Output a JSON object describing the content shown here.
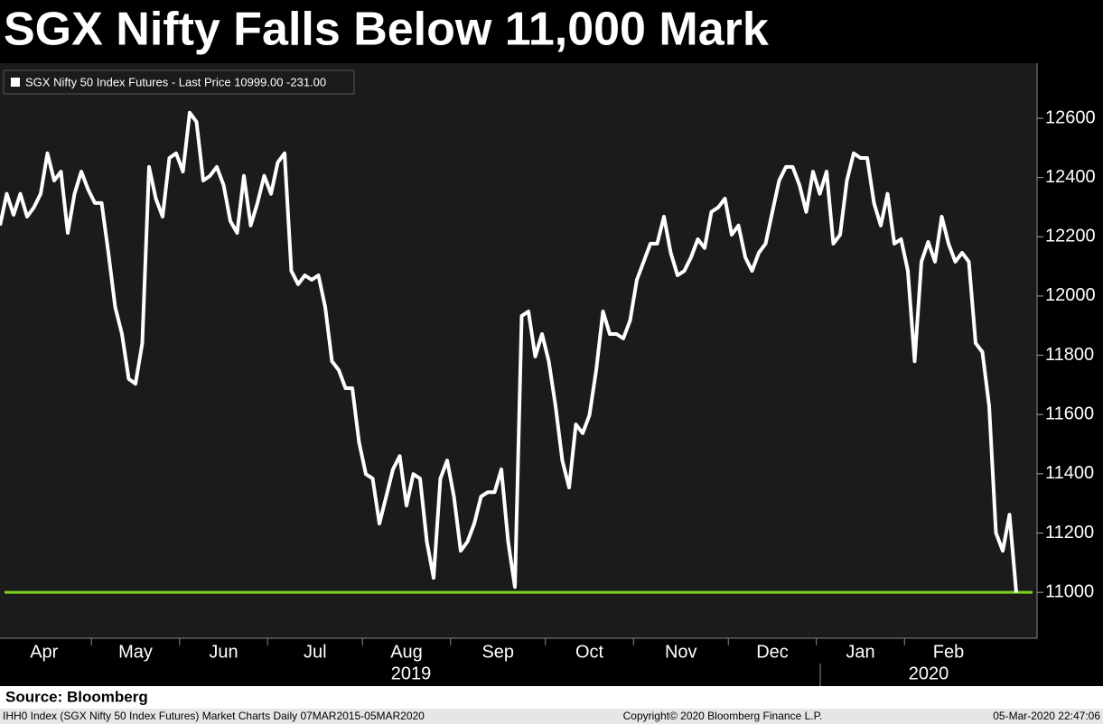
{
  "chart_data": {
    "type": "line",
    "title": "SGX Nifty Falls Below 11,000 Mark",
    "source": "Source: Bloomberg",
    "footer_left": "IHH0 Index (SGX Nifty 50 Index Futures) Market Charts  Daily 07MAR2015-05MAR2020",
    "footer_center": "Copyright© 2020 Bloomberg Finance L.P.",
    "footer_right": "05-Mar-2020 22:47:06",
    "x_group_labels": [
      "2019",
      "2020"
    ],
    "categories": [
      "Apr",
      null,
      null,
      null,
      null,
      null,
      null,
      null,
      null,
      null,
      null,
      null,
      null,
      null,
      "May",
      null,
      null,
      null,
      null,
      null,
      null,
      null,
      null,
      null,
      null,
      null,
      null,
      "Jun",
      null,
      null,
      null,
      null,
      null,
      null,
      null,
      null,
      null,
      null,
      null,
      null,
      "Jul",
      null,
      null,
      null,
      null,
      null,
      null,
      null,
      null,
      null,
      null,
      null,
      null,
      null,
      "Aug",
      null,
      null,
      null,
      null,
      null,
      null,
      null,
      null,
      null,
      null,
      null,
      null,
      "Sep",
      null,
      null,
      null,
      null,
      null,
      null,
      null,
      null,
      null,
      null,
      null,
      null,
      null,
      "Oct",
      null,
      null,
      null,
      null,
      null,
      null,
      null,
      null,
      null,
      null,
      null,
      null,
      "Nov",
      null,
      null,
      null,
      null,
      null,
      null,
      null,
      null,
      null,
      null,
      null,
      null,
      null,
      "Dec",
      null,
      null,
      null,
      null,
      null,
      null,
      null,
      null,
      null,
      null,
      null,
      null,
      "Jan",
      null,
      null,
      null,
      null,
      null,
      null,
      null,
      null,
      null,
      null,
      null,
      null,
      "Feb",
      null,
      null,
      null,
      null,
      null,
      null,
      null,
      null,
      null,
      null,
      null,
      null,
      null,
      null,
      null,
      null
    ],
    "series": [
      {
        "name": "SGX Nifty 50 Index Futures - Last Price 10999.00  -231.00",
        "color": "#ffffff",
        "values": [
          12238,
          12345,
          12274,
          12345,
          12268,
          12299,
          12345,
          12482,
          12390,
          12420,
          12213,
          12345,
          12420,
          12360,
          12314,
          12314,
          12146,
          11963,
          11872,
          11720,
          11704,
          11841,
          12436,
          12329,
          12268,
          12466,
          12482,
          12420,
          12619,
          12588,
          12390,
          12406,
          12436,
          12375,
          12253,
          12213,
          12406,
          12238,
          12314,
          12406,
          12345,
          12451,
          12482,
          12085,
          12040,
          12070,
          12055,
          12070,
          11963,
          11780,
          11750,
          11689,
          11689,
          11506,
          11399,
          11384,
          11232,
          11323,
          11415,
          11460,
          11293,
          11399,
          11384,
          11171,
          11049,
          11384,
          11445,
          11323,
          11140,
          11171,
          11232,
          11323,
          11338,
          11338,
          11415,
          11171,
          11018,
          11933,
          11948,
          11796,
          11872,
          11780,
          11628,
          11445,
          11354,
          11567,
          11537,
          11598,
          11750,
          11948,
          11872,
          11872,
          11857,
          11918,
          12055,
          12116,
          12177,
          12177,
          12268,
          12146,
          12070,
          12085,
          12131,
          12192,
          12162,
          12284,
          12299,
          12329,
          12207,
          12238,
          12131,
          12085,
          12146,
          12177,
          12284,
          12390,
          12436,
          12436,
          12375,
          12284,
          12420,
          12345,
          12420,
          12177,
          12207,
          12390,
          12482,
          12466,
          12466,
          12314,
          12238,
          12345,
          12177,
          12192,
          12085,
          11780,
          12116,
          12183,
          12116,
          12268,
          12177,
          12116,
          12146,
          12116,
          11841,
          11811,
          11628,
          11201,
          11140,
          11262,
          10999
        ]
      }
    ],
    "reference_line": {
      "value": 11000,
      "color": "#7ed321"
    },
    "ylim": [
      10845,
      12786
    ],
    "yticks": [
      11000,
      11200,
      11400,
      11600,
      11800,
      12000,
      12200,
      12400,
      12600
    ],
    "grid": false,
    "legend": "top-left"
  }
}
